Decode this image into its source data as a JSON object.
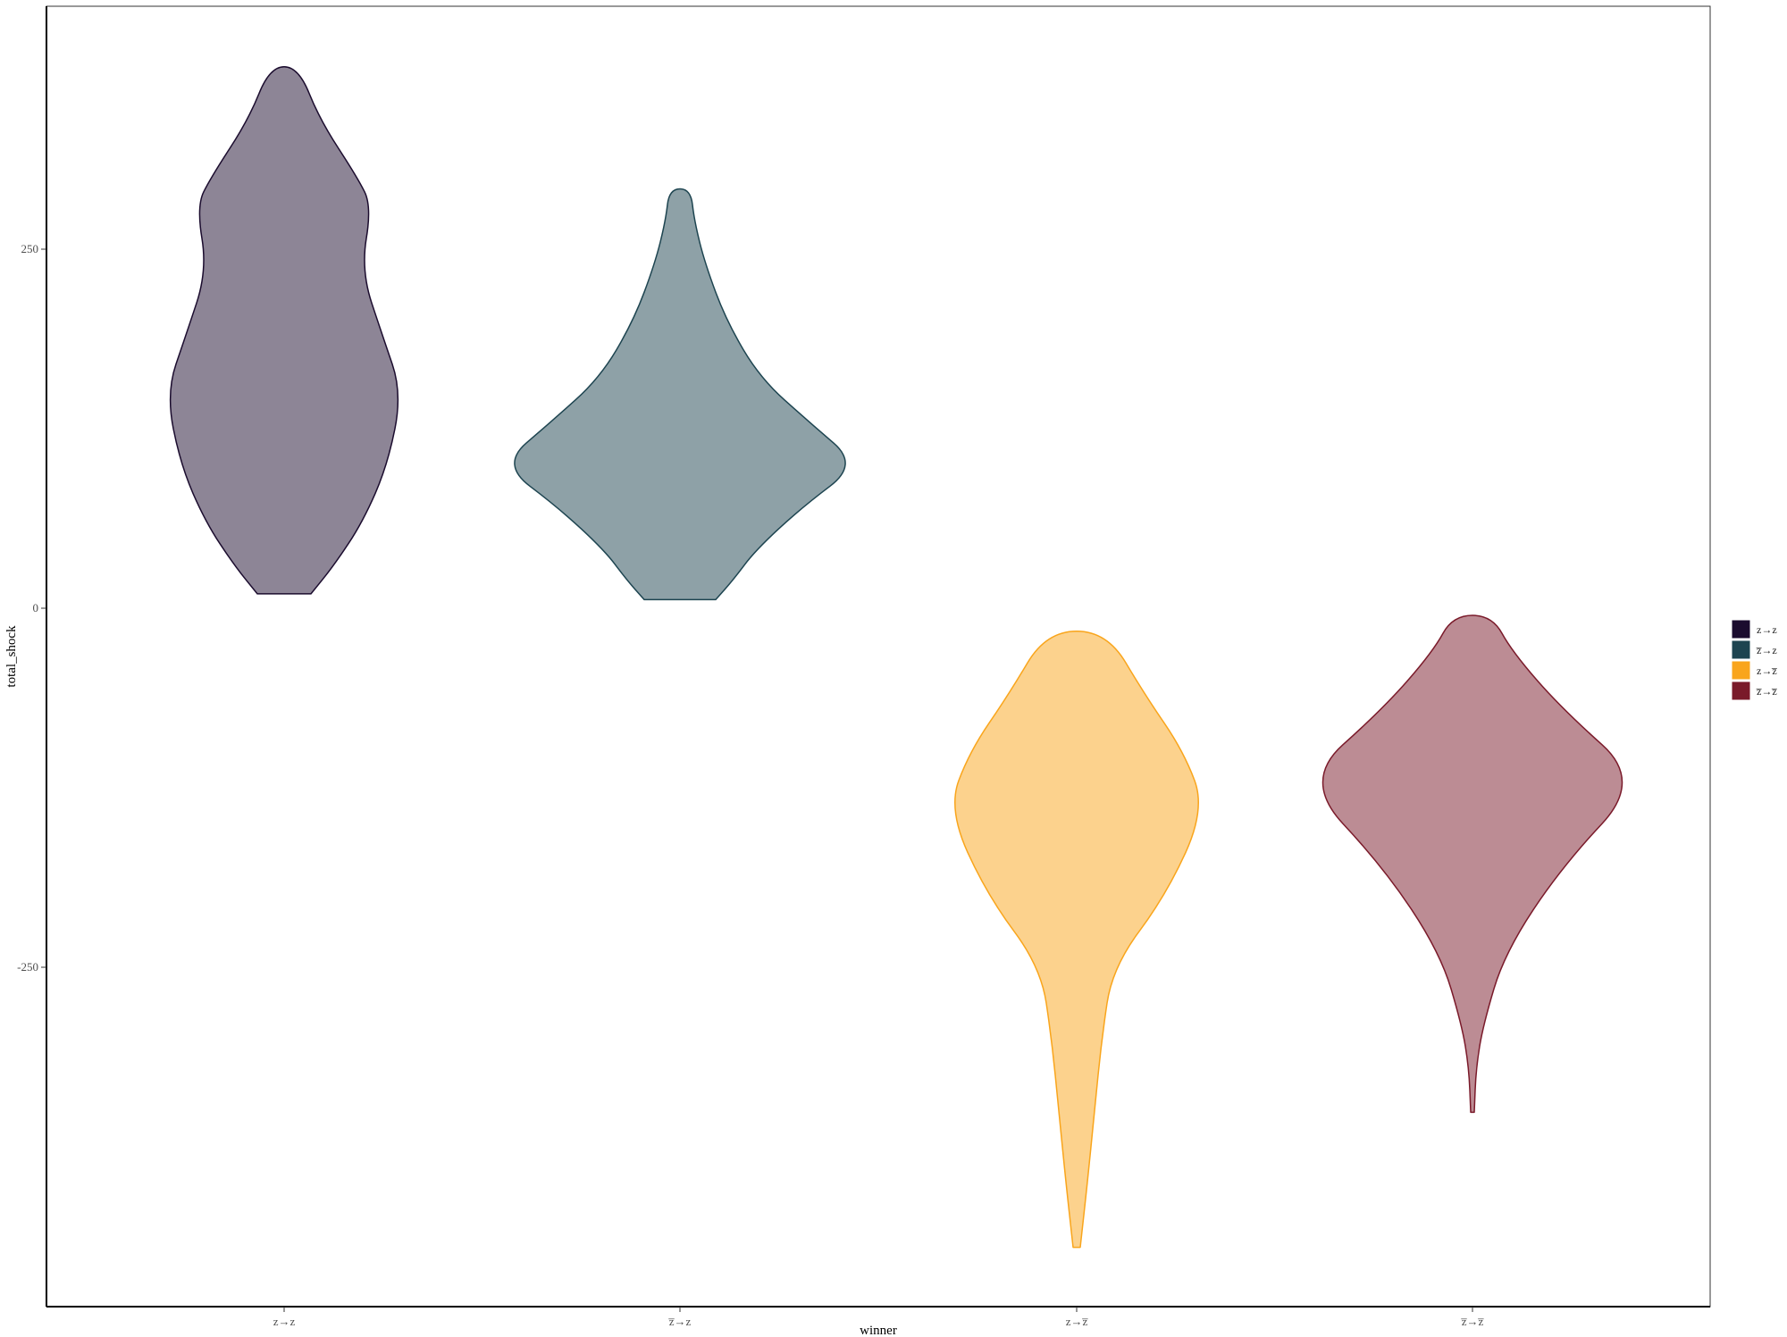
{
  "chart_data": {
    "type": "violin",
    "xlabel": "winner",
    "ylabel": "total_shock",
    "categories": [
      "z→z",
      "z̅→z",
      "z→z̅",
      "z̅→z̅"
    ],
    "yticks": [
      -250,
      0,
      250
    ],
    "ylim": [
      -485,
      420
    ],
    "grid": false,
    "legend_position": "right",
    "series": [
      {
        "name": "z→z",
        "fill": "#1b0c2e",
        "stroke": "#1b0c2e",
        "fill_opacity": 0.5,
        "min": 10,
        "max": 377,
        "profile": [
          [
            10,
            0.15
          ],
          [
            30,
            0.28
          ],
          [
            60,
            0.44
          ],
          [
            100,
            0.58
          ],
          [
            150,
            0.66
          ],
          [
            190,
            0.55
          ],
          [
            235,
            0.43
          ],
          [
            280,
            0.49
          ],
          [
            300,
            0.41
          ],
          [
            340,
            0.2
          ],
          [
            377,
            0.08
          ]
        ]
      },
      {
        "name": "z̅→z",
        "fill": "#1d4450",
        "stroke": "#1d4450",
        "fill_opacity": 0.5,
        "min": 6,
        "max": 292,
        "profile": [
          [
            6,
            0.2
          ],
          [
            20,
            0.3
          ],
          [
            40,
            0.42
          ],
          [
            70,
            0.68
          ],
          [
            100,
            1.0
          ],
          [
            130,
            0.72
          ],
          [
            160,
            0.45
          ],
          [
            200,
            0.26
          ],
          [
            240,
            0.14
          ],
          [
            270,
            0.08
          ],
          [
            292,
            0.06
          ]
        ]
      },
      {
        "name": "z→z̅",
        "fill": "#f9a51c",
        "stroke": "#f9a51c",
        "fill_opacity": 0.5,
        "min": -445,
        "max": -16,
        "profile": [
          [
            -445,
            0.02
          ],
          [
            -400,
            0.06
          ],
          [
            -350,
            0.1
          ],
          [
            -300,
            0.14
          ],
          [
            -250,
            0.2
          ],
          [
            -200,
            0.5
          ],
          [
            -140,
            0.72
          ],
          [
            -100,
            0.6
          ],
          [
            -60,
            0.38
          ],
          [
            -16,
            0.17
          ]
        ]
      },
      {
        "name": "z̅→z̅",
        "fill": "#7a1a2a",
        "stroke": "#7a1a2a",
        "fill_opacity": 0.5,
        "min": -351,
        "max": -5,
        "profile": [
          [
            -351,
            0.01
          ],
          [
            -320,
            0.02
          ],
          [
            -290,
            0.06
          ],
          [
            -240,
            0.18
          ],
          [
            -180,
            0.5
          ],
          [
            -120,
            0.95
          ],
          [
            -70,
            0.5
          ],
          [
            -30,
            0.22
          ],
          [
            -5,
            0.11
          ]
        ]
      }
    ]
  }
}
